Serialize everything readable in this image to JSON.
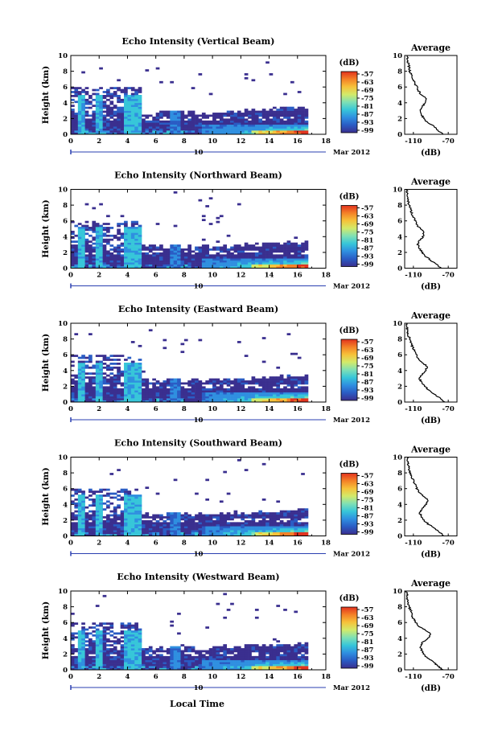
{
  "figure": {
    "date_label": "Mar 2012",
    "day_label": "10",
    "xlabel": "Local Time"
  },
  "colormap": [
    "#3a2f8f",
    "#2a5cc4",
    "#2f8fe0",
    "#37c6d9",
    "#7fe0b5",
    "#d2ea6a",
    "#f6c23a",
    "#f48127",
    "#e2321e"
  ],
  "chart_data": [
    {
      "type": "heatmap",
      "title": "Echo Intensity (Vertical Beam)",
      "ylabel": "Height (km)",
      "xlim": [
        0,
        18
      ],
      "ylim": [
        0,
        10
      ],
      "x_ticks": [
        0,
        2,
        4,
        6,
        8,
        10,
        12,
        14,
        16,
        18
      ],
      "y_ticks": [
        0,
        2,
        4,
        6,
        8,
        10
      ],
      "colorbar": {
        "label": "(dB)",
        "ticks": [
          "-57",
          "-63",
          "-69",
          "-75",
          "-81",
          "-87",
          "-93",
          "-99"
        ]
      },
      "average": {
        "title": "Average",
        "xlabel": "(dB)",
        "x_ticks": [
          "-110",
          "-70"
        ],
        "xlim": [
          -120,
          -60
        ],
        "ylim": [
          0,
          10
        ],
        "y_ticks": [
          0,
          2,
          4,
          6,
          8,
          10
        ],
        "profile": [
          [
            0.0,
            -76
          ],
          [
            0.5,
            -82
          ],
          [
            1.0,
            -86
          ],
          [
            1.5,
            -94
          ],
          [
            2.0,
            -98
          ],
          [
            2.5,
            -101
          ],
          [
            3.0,
            -103
          ],
          [
            3.5,
            -100
          ],
          [
            4.0,
            -96
          ],
          [
            4.5,
            -95
          ],
          [
            5.0,
            -101
          ],
          [
            5.5,
            -104
          ],
          [
            6.0,
            -106
          ],
          [
            6.5,
            -109
          ],
          [
            7.0,
            -110
          ],
          [
            7.5,
            -112
          ],
          [
            8.0,
            -114
          ],
          [
            8.5,
            -115
          ],
          [
            9.0,
            -116
          ],
          [
            9.5,
            -117
          ],
          [
            10.0,
            -117
          ]
        ]
      }
    },
    {
      "type": "heatmap",
      "title": "Echo Intensity (Northward Beam)",
      "ylabel": "Height (km)",
      "xlim": [
        0,
        18
      ],
      "ylim": [
        0,
        10
      ],
      "x_ticks": [
        0,
        2,
        4,
        6,
        8,
        10,
        12,
        14,
        16,
        18
      ],
      "y_ticks": [
        0,
        2,
        4,
        6,
        8,
        10
      ],
      "colorbar": {
        "label": "(dB)",
        "ticks": [
          "-57",
          "-63",
          "-69",
          "-75",
          "-81",
          "-87",
          "-93",
          "-99"
        ]
      },
      "average": {
        "title": "Average",
        "xlabel": "(dB)",
        "x_ticks": [
          "-110",
          "-70"
        ],
        "xlim": [
          -120,
          -60
        ],
        "ylim": [
          0,
          10
        ],
        "y_ticks": [
          0,
          2,
          4,
          6,
          8,
          10
        ],
        "profile": [
          [
            0.0,
            -78
          ],
          [
            0.5,
            -84
          ],
          [
            1.0,
            -90
          ],
          [
            1.5,
            -96
          ],
          [
            2.0,
            -100
          ],
          [
            2.5,
            -103
          ],
          [
            3.0,
            -105
          ],
          [
            3.5,
            -103
          ],
          [
            4.0,
            -99
          ],
          [
            4.5,
            -98
          ],
          [
            5.0,
            -102
          ],
          [
            5.5,
            -106
          ],
          [
            6.0,
            -108
          ],
          [
            6.5,
            -110
          ],
          [
            7.0,
            -112
          ],
          [
            7.5,
            -113
          ],
          [
            8.0,
            -115
          ],
          [
            8.5,
            -116
          ],
          [
            9.0,
            -117
          ],
          [
            9.5,
            -117
          ],
          [
            10.0,
            -118
          ]
        ]
      }
    },
    {
      "type": "heatmap",
      "title": "Echo Intensity (Eastward Beam)",
      "ylabel": "Height (km)",
      "xlim": [
        0,
        18
      ],
      "ylim": [
        0,
        10
      ],
      "x_ticks": [
        0,
        2,
        4,
        6,
        8,
        10,
        12,
        14,
        16,
        18
      ],
      "y_ticks": [
        0,
        2,
        4,
        6,
        8,
        10
      ],
      "colorbar": {
        "label": "(dB)",
        "ticks": [
          "-57",
          "-63",
          "-69",
          "-75",
          "-81",
          "-87",
          "-93",
          "-99"
        ]
      },
      "average": {
        "title": "Average",
        "xlabel": "(dB)",
        "x_ticks": [
          "-110",
          "-70"
        ],
        "xlim": [
          -120,
          -60
        ],
        "ylim": [
          0,
          10
        ],
        "y_ticks": [
          0,
          2,
          4,
          6,
          8,
          10
        ],
        "profile": [
          [
            0.0,
            -74
          ],
          [
            0.5,
            -80
          ],
          [
            1.0,
            -86
          ],
          [
            1.5,
            -92
          ],
          [
            2.0,
            -97
          ],
          [
            2.5,
            -101
          ],
          [
            3.0,
            -103
          ],
          [
            3.5,
            -100
          ],
          [
            4.0,
            -96
          ],
          [
            4.5,
            -94
          ],
          [
            5.0,
            -100
          ],
          [
            5.5,
            -104
          ],
          [
            6.0,
            -107
          ],
          [
            6.5,
            -109
          ],
          [
            7.0,
            -111
          ],
          [
            7.5,
            -113
          ],
          [
            8.0,
            -114
          ],
          [
            8.5,
            -116
          ],
          [
            9.0,
            -117
          ],
          [
            9.5,
            -117
          ],
          [
            10.0,
            -118
          ]
        ]
      }
    },
    {
      "type": "heatmap",
      "title": "Echo Intensity (Southward Beam)",
      "ylabel": "Height (km)",
      "xlim": [
        0,
        18
      ],
      "ylim": [
        0,
        10
      ],
      "x_ticks": [
        0,
        2,
        4,
        6,
        8,
        10,
        12,
        14,
        16,
        18
      ],
      "y_ticks": [
        0,
        2,
        4,
        6,
        8,
        10
      ],
      "colorbar": {
        "label": "(dB)",
        "ticks": [
          "-57",
          "-63",
          "-69",
          "-75",
          "-81",
          "-87",
          "-93",
          "-99"
        ]
      },
      "average": {
        "title": "Average",
        "xlabel": "(dB)",
        "x_ticks": [
          "-110",
          "-70"
        ],
        "xlim": [
          -120,
          -60
        ],
        "ylim": [
          0,
          10
        ],
        "y_ticks": [
          0,
          2,
          4,
          6,
          8,
          10
        ],
        "profile": [
          [
            0.0,
            -75
          ],
          [
            0.5,
            -80
          ],
          [
            1.0,
            -86
          ],
          [
            1.5,
            -93
          ],
          [
            2.0,
            -98
          ],
          [
            2.5,
            -101
          ],
          [
            3.0,
            -103
          ],
          [
            3.5,
            -100
          ],
          [
            4.0,
            -95
          ],
          [
            4.5,
            -93
          ],
          [
            5.0,
            -98
          ],
          [
            5.5,
            -103
          ],
          [
            6.0,
            -106
          ],
          [
            6.5,
            -108
          ],
          [
            7.0,
            -110
          ],
          [
            7.5,
            -112
          ],
          [
            8.0,
            -114
          ],
          [
            8.5,
            -115
          ],
          [
            9.0,
            -116
          ],
          [
            9.5,
            -117
          ],
          [
            10.0,
            -117
          ]
        ]
      }
    },
    {
      "type": "heatmap",
      "title": "Echo Intensity (Westward Beam)",
      "ylabel": "Height (km)",
      "xlim": [
        0,
        18
      ],
      "ylim": [
        0,
        10
      ],
      "x_ticks": [
        0,
        2,
        4,
        6,
        8,
        10,
        12,
        14,
        16,
        18
      ],
      "y_ticks": [
        0,
        2,
        4,
        6,
        8,
        10
      ],
      "colorbar": {
        "label": "(dB)",
        "ticks": [
          "-57",
          "-63",
          "-69",
          "-75",
          "-81",
          "-87",
          "-93",
          "-99"
        ]
      },
      "average": {
        "title": "Average",
        "xlabel": "(dB)",
        "x_ticks": [
          "-110",
          "-70"
        ],
        "xlim": [
          -120,
          -60
        ],
        "ylim": [
          0,
          10
        ],
        "y_ticks": [
          0,
          2,
          4,
          6,
          8,
          10
        ],
        "profile": [
          [
            0.0,
            -76
          ],
          [
            0.5,
            -82
          ],
          [
            1.0,
            -87
          ],
          [
            1.5,
            -94
          ],
          [
            2.0,
            -98
          ],
          [
            2.5,
            -101
          ],
          [
            3.0,
            -102
          ],
          [
            3.5,
            -99
          ],
          [
            4.0,
            -93
          ],
          [
            4.5,
            -90
          ],
          [
            5.0,
            -96
          ],
          [
            5.5,
            -103
          ],
          [
            6.0,
            -107
          ],
          [
            6.5,
            -110
          ],
          [
            7.0,
            -112
          ],
          [
            7.5,
            -113
          ],
          [
            8.0,
            -115
          ],
          [
            8.5,
            -116
          ],
          [
            9.0,
            -117
          ],
          [
            9.5,
            -117
          ],
          [
            10.0,
            -118
          ]
        ]
      }
    }
  ]
}
